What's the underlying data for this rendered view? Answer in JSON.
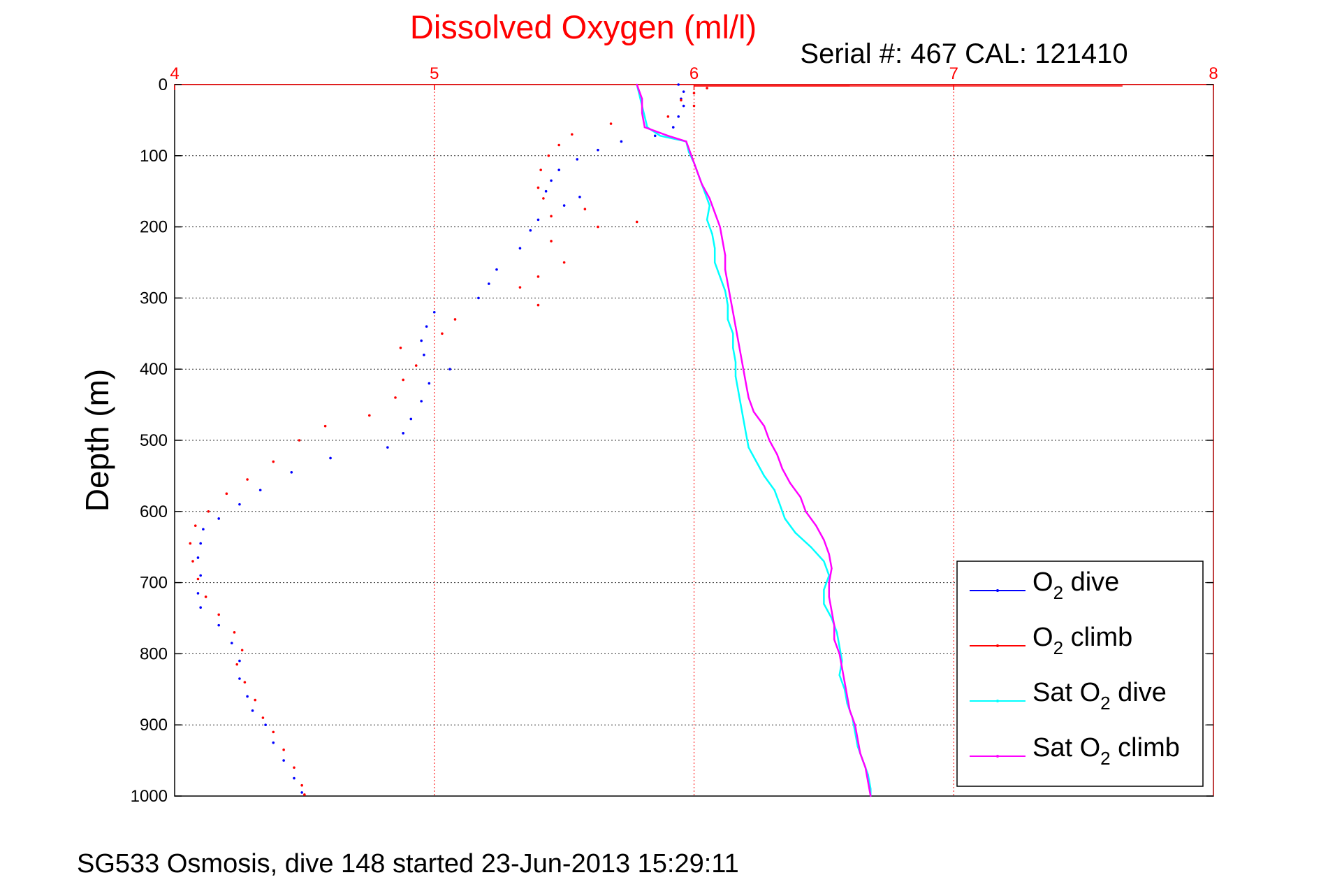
{
  "chart_data": {
    "type": "scatter",
    "title": "Dissolved Oxygen (ml/l)",
    "subtitle": "Serial #: 467  CAL: 121410",
    "ylabel": "Depth (m)",
    "footer": "SG533 Osmosis, dive 148 started 23-Jun-2013 15:29:11",
    "xlim": [
      4,
      8
    ],
    "ylim": [
      0,
      1000
    ],
    "y_reversed": true,
    "x_axis_position": "top",
    "grid": true,
    "legend_position": "bottom-right",
    "x_ticks": [
      "4",
      "5",
      "6",
      "7",
      "8"
    ],
    "y_ticks": [
      "0",
      "100",
      "200",
      "300",
      "400",
      "500",
      "600",
      "700",
      "800",
      "900",
      "1000"
    ],
    "colors": {
      "o2_dive": "#0000ff",
      "o2_climb": "#ff0000",
      "sat_dive": "#00ffff",
      "sat_climb": "#ff00ff",
      "grid": "#ff0000",
      "axis_accent": "#ff0000"
    },
    "legend": [
      {
        "key": "o2_dive",
        "prefix": "O",
        "sub": "2",
        "suffix": " dive"
      },
      {
        "key": "o2_climb",
        "prefix": "O",
        "sub": "2",
        "suffix": " climb"
      },
      {
        "key": "sat_dive",
        "prefix": "Sat O",
        "sub": "2",
        "suffix": " dive"
      },
      {
        "key": "sat_climb",
        "prefix": "Sat O",
        "sub": "2",
        "suffix": " climb"
      }
    ],
    "series": [
      {
        "key": "o2_dive",
        "style": "points",
        "color": "#0000ff",
        "points": [
          [
            5.94,
            0
          ],
          [
            5.96,
            10
          ],
          [
            5.95,
            20
          ],
          [
            5.96,
            30
          ],
          [
            5.94,
            45
          ],
          [
            5.92,
            60
          ],
          [
            5.85,
            72
          ],
          [
            5.72,
            80
          ],
          [
            5.63,
            92
          ],
          [
            5.55,
            105
          ],
          [
            5.48,
            120
          ],
          [
            5.45,
            135
          ],
          [
            5.43,
            150
          ],
          [
            5.56,
            158
          ],
          [
            5.5,
            170
          ],
          [
            5.4,
            190
          ],
          [
            5.37,
            205
          ],
          [
            5.33,
            230
          ],
          [
            5.24,
            260
          ],
          [
            5.21,
            280
          ],
          [
            5.17,
            300
          ],
          [
            5.0,
            320
          ],
          [
            4.97,
            340
          ],
          [
            4.95,
            360
          ],
          [
            4.96,
            380
          ],
          [
            5.06,
            400
          ],
          [
            4.98,
            420
          ],
          [
            4.95,
            445
          ],
          [
            4.91,
            470
          ],
          [
            4.88,
            490
          ],
          [
            4.82,
            510
          ],
          [
            4.6,
            525
          ],
          [
            4.45,
            545
          ],
          [
            4.33,
            570
          ],
          [
            4.25,
            590
          ],
          [
            4.17,
            610
          ],
          [
            4.11,
            625
          ],
          [
            4.1,
            645
          ],
          [
            4.09,
            665
          ],
          [
            4.1,
            690
          ],
          [
            4.09,
            715
          ],
          [
            4.1,
            735
          ],
          [
            4.17,
            760
          ],
          [
            4.22,
            785
          ],
          [
            4.25,
            810
          ],
          [
            4.25,
            835
          ],
          [
            4.28,
            860
          ],
          [
            4.3,
            880
          ],
          [
            4.35,
            900
          ],
          [
            4.38,
            925
          ],
          [
            4.42,
            950
          ],
          [
            4.46,
            975
          ],
          [
            4.49,
            995
          ]
        ]
      },
      {
        "key": "o2_climb",
        "style": "points",
        "color": "#ff0000",
        "points": [
          [
            7.65,
            2
          ],
          [
            6.6,
            2
          ],
          [
            6.05,
            5
          ],
          [
            6.0,
            12
          ],
          [
            5.95,
            22
          ],
          [
            6.0,
            30
          ],
          [
            5.9,
            45
          ],
          [
            5.68,
            55
          ],
          [
            5.53,
            70
          ],
          [
            5.48,
            85
          ],
          [
            5.44,
            100
          ],
          [
            5.41,
            120
          ],
          [
            5.4,
            145
          ],
          [
            5.42,
            160
          ],
          [
            5.58,
            175
          ],
          [
            5.45,
            185
          ],
          [
            5.78,
            193
          ],
          [
            5.63,
            200
          ],
          [
            5.45,
            220
          ],
          [
            5.5,
            250
          ],
          [
            5.4,
            270
          ],
          [
            5.33,
            285
          ],
          [
            5.4,
            310
          ],
          [
            5.08,
            330
          ],
          [
            5.03,
            350
          ],
          [
            4.87,
            370
          ],
          [
            4.93,
            395
          ],
          [
            4.88,
            415
          ],
          [
            4.85,
            440
          ],
          [
            4.75,
            465
          ],
          [
            4.58,
            480
          ],
          [
            4.48,
            500
          ],
          [
            4.38,
            530
          ],
          [
            4.28,
            555
          ],
          [
            4.2,
            575
          ],
          [
            4.13,
            600
          ],
          [
            4.08,
            620
          ],
          [
            4.06,
            645
          ],
          [
            4.07,
            670
          ],
          [
            4.09,
            695
          ],
          [
            4.12,
            720
          ],
          [
            4.17,
            745
          ],
          [
            4.23,
            770
          ],
          [
            4.26,
            795
          ],
          [
            4.24,
            815
          ],
          [
            4.27,
            840
          ],
          [
            4.31,
            865
          ],
          [
            4.34,
            890
          ],
          [
            4.38,
            910
          ],
          [
            4.42,
            935
          ],
          [
            4.46,
            960
          ],
          [
            4.49,
            985
          ],
          [
            4.5,
            998
          ]
        ]
      },
      {
        "key": "sat_dive",
        "style": "line",
        "color": "#00ffff",
        "points": [
          [
            5.78,
            0
          ],
          [
            5.8,
            30
          ],
          [
            5.82,
            60
          ],
          [
            5.87,
            72
          ],
          [
            5.97,
            80
          ],
          [
            5.98,
            95
          ],
          [
            6.0,
            110
          ],
          [
            6.02,
            130
          ],
          [
            6.04,
            150
          ],
          [
            6.06,
            170
          ],
          [
            6.05,
            190
          ],
          [
            6.07,
            210
          ],
          [
            6.08,
            230
          ],
          [
            6.08,
            250
          ],
          [
            6.1,
            270
          ],
          [
            6.12,
            290
          ],
          [
            6.13,
            310
          ],
          [
            6.13,
            330
          ],
          [
            6.15,
            350
          ],
          [
            6.15,
            370
          ],
          [
            6.16,
            390
          ],
          [
            6.16,
            410
          ],
          [
            6.17,
            430
          ],
          [
            6.18,
            450
          ],
          [
            6.19,
            470
          ],
          [
            6.2,
            490
          ],
          [
            6.21,
            510
          ],
          [
            6.24,
            530
          ],
          [
            6.27,
            550
          ],
          [
            6.31,
            570
          ],
          [
            6.33,
            590
          ],
          [
            6.35,
            610
          ],
          [
            6.39,
            630
          ],
          [
            6.45,
            650
          ],
          [
            6.5,
            670
          ],
          [
            6.52,
            690
          ],
          [
            6.5,
            710
          ],
          [
            6.5,
            730
          ],
          [
            6.53,
            750
          ],
          [
            6.55,
            770
          ],
          [
            6.56,
            790
          ],
          [
            6.57,
            810
          ],
          [
            6.56,
            830
          ],
          [
            6.58,
            850
          ],
          [
            6.59,
            870
          ],
          [
            6.61,
            890
          ],
          [
            6.62,
            910
          ],
          [
            6.63,
            930
          ],
          [
            6.65,
            950
          ],
          [
            6.67,
            970
          ],
          [
            6.68,
            990
          ],
          [
            6.68,
            1000
          ]
        ]
      },
      {
        "key": "sat_climb",
        "style": "line",
        "color": "#ff00ff",
        "points": [
          [
            5.78,
            0
          ],
          [
            5.8,
            20
          ],
          [
            5.8,
            40
          ],
          [
            5.81,
            60
          ],
          [
            5.9,
            72
          ],
          [
            5.97,
            80
          ],
          [
            5.99,
            100
          ],
          [
            6.01,
            120
          ],
          [
            6.03,
            140
          ],
          [
            6.06,
            160
          ],
          [
            6.08,
            180
          ],
          [
            6.1,
            200
          ],
          [
            6.11,
            220
          ],
          [
            6.12,
            240
          ],
          [
            6.12,
            260
          ],
          [
            6.13,
            280
          ],
          [
            6.14,
            300
          ],
          [
            6.15,
            320
          ],
          [
            6.16,
            340
          ],
          [
            6.17,
            360
          ],
          [
            6.18,
            380
          ],
          [
            6.19,
            400
          ],
          [
            6.2,
            420
          ],
          [
            6.21,
            440
          ],
          [
            6.23,
            460
          ],
          [
            6.27,
            480
          ],
          [
            6.29,
            500
          ],
          [
            6.32,
            520
          ],
          [
            6.34,
            540
          ],
          [
            6.37,
            560
          ],
          [
            6.41,
            580
          ],
          [
            6.43,
            600
          ],
          [
            6.47,
            620
          ],
          [
            6.5,
            640
          ],
          [
            6.52,
            660
          ],
          [
            6.53,
            680
          ],
          [
            6.52,
            700
          ],
          [
            6.52,
            720
          ],
          [
            6.53,
            740
          ],
          [
            6.54,
            760
          ],
          [
            6.54,
            780
          ],
          [
            6.56,
            800
          ],
          [
            6.57,
            820
          ],
          [
            6.58,
            840
          ],
          [
            6.59,
            860
          ],
          [
            6.6,
            880
          ],
          [
            6.62,
            900
          ],
          [
            6.63,
            920
          ],
          [
            6.64,
            940
          ],
          [
            6.66,
            960
          ],
          [
            6.67,
            980
          ],
          [
            6.68,
            1000
          ]
        ]
      }
    ]
  }
}
